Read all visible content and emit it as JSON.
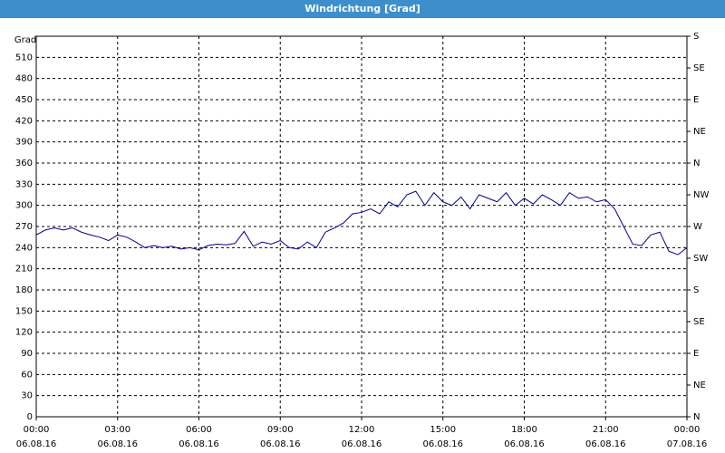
{
  "chart_data": {
    "type": "line",
    "title": "Windrichtung [Grad]",
    "ylabel": "Grad",
    "x": [
      0,
      0.333,
      0.667,
      1,
      1.333,
      1.667,
      2,
      2.333,
      2.667,
      3,
      3.333,
      3.667,
      4,
      4.333,
      4.667,
      5,
      5.333,
      5.667,
      6,
      6.333,
      6.667,
      7,
      7.333,
      7.667,
      8,
      8.333,
      8.667,
      9,
      9.333,
      9.667,
      10,
      10.333,
      10.667,
      11,
      11.333,
      11.667,
      12,
      12.333,
      12.667,
      13,
      13.333,
      13.667,
      14,
      14.333,
      14.667,
      15,
      15.333,
      15.667,
      16,
      16.333,
      16.667,
      17,
      17.333,
      17.667,
      18,
      18.333,
      18.667,
      19,
      19.333,
      19.667,
      20,
      20.333,
      20.667,
      21,
      21.333,
      21.667,
      22,
      22.333,
      22.667,
      23,
      23.333,
      23.667,
      24
    ],
    "series": [
      {
        "name": "Windrichtung",
        "color": "#00008b",
        "values": [
          258,
          265,
          268,
          265,
          268,
          262,
          258,
          255,
          250,
          258,
          255,
          248,
          240,
          243,
          240,
          242,
          238,
          240,
          237,
          243,
          245,
          244,
          246,
          263,
          242,
          248,
          245,
          250,
          240,
          238,
          248,
          240,
          262,
          268,
          275,
          288,
          290,
          295,
          288,
          305,
          298,
          315,
          320,
          300,
          318,
          305,
          300,
          312,
          295,
          315,
          310,
          305,
          318,
          300,
          310,
          302,
          315,
          308,
          300,
          318,
          310,
          312,
          305,
          308,
          295,
          270,
          245,
          243,
          258,
          262,
          235,
          230,
          240
        ]
      }
    ],
    "xlim": [
      0,
      24
    ],
    "xticks": [
      {
        "value": 0,
        "label": "00:00",
        "date": "06.08.16"
      },
      {
        "value": 3,
        "label": "03:00",
        "date": "06.08.16"
      },
      {
        "value": 6,
        "label": "06:00",
        "date": "06.08.16"
      },
      {
        "value": 9,
        "label": "09:00",
        "date": "06.08.16"
      },
      {
        "value": 12,
        "label": "12:00",
        "date": "06.08.16"
      },
      {
        "value": 15,
        "label": "15:00",
        "date": "06.08.16"
      },
      {
        "value": 18,
        "label": "18:00",
        "date": "06.08.16"
      },
      {
        "value": 21,
        "label": "21:00",
        "date": "06.08.16"
      },
      {
        "value": 24,
        "label": "00:00",
        "date": "07.08.16"
      }
    ],
    "ylim": [
      0,
      540
    ],
    "yticks": [
      0,
      30,
      60,
      90,
      120,
      150,
      180,
      210,
      240,
      270,
      300,
      330,
      360,
      390,
      420,
      450,
      480,
      510
    ],
    "y2lim": [
      0,
      540
    ],
    "y2ticks": [
      {
        "value": 0,
        "label": "N"
      },
      {
        "value": 45,
        "label": "NE"
      },
      {
        "value": 90,
        "label": "E"
      },
      {
        "value": 135,
        "label": "SE"
      },
      {
        "value": 180,
        "label": "S"
      },
      {
        "value": 225,
        "label": "SW"
      },
      {
        "value": 270,
        "label": "W"
      },
      {
        "value": 315,
        "label": "NW"
      },
      {
        "value": 360,
        "label": "N"
      },
      {
        "value": 405,
        "label": "NE"
      },
      {
        "value": 450,
        "label": "E"
      },
      {
        "value": 495,
        "label": "SE"
      },
      {
        "value": 540,
        "label": "S"
      }
    ],
    "grid": true
  }
}
